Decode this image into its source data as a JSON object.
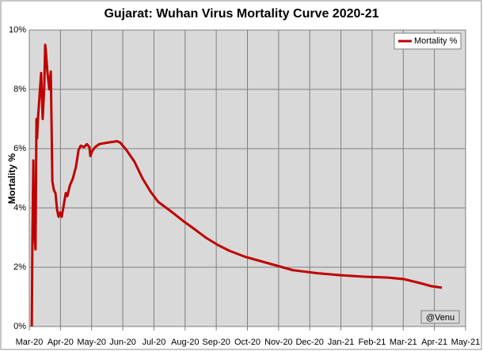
{
  "chart_data": {
    "type": "line",
    "title": "Gujarat: Wuhan Virus Mortality Curve 2020-21",
    "y_label": "Mortality %",
    "annotation": "@Venu",
    "legend": "upper right",
    "grid": true,
    "xlim": [
      0,
      14
    ],
    "xticks": [
      {
        "value": 0,
        "label": "Mar-20"
      },
      {
        "value": 1,
        "label": "Apr-20"
      },
      {
        "value": 2,
        "label": "May-20"
      },
      {
        "value": 3,
        "label": "Jun-20"
      },
      {
        "value": 4,
        "label": "Jul-20"
      },
      {
        "value": 5,
        "label": "Aug-20"
      },
      {
        "value": 6,
        "label": "Sep-20"
      },
      {
        "value": 7,
        "label": "Oct-20"
      },
      {
        "value": 8,
        "label": "Nov-20"
      },
      {
        "value": 9,
        "label": "Dec-20"
      },
      {
        "value": 10,
        "label": "Jan-21"
      },
      {
        "value": 11,
        "label": "Feb-21"
      },
      {
        "value": 12,
        "label": "Mar-21"
      },
      {
        "value": 13,
        "label": "Apr-21"
      },
      {
        "value": 14,
        "label": "May-21"
      }
    ],
    "ylim": [
      0,
      10
    ],
    "yticks": [
      {
        "value": 0,
        "label": "0%"
      },
      {
        "value": 2,
        "label": "2%"
      },
      {
        "value": 4,
        "label": "4%"
      },
      {
        "value": 6,
        "label": "6%"
      },
      {
        "value": 8,
        "label": "8%"
      },
      {
        "value": 10,
        "label": "10%"
      }
    ],
    "x": [
      0.08,
      0.1,
      0.13,
      0.15,
      0.2,
      0.23,
      0.25,
      0.28,
      0.33,
      0.38,
      0.43,
      0.48,
      0.51,
      0.53,
      0.58,
      0.64,
      0.69,
      0.74,
      0.79,
      0.84,
      0.89,
      0.94,
      0.99,
      1.04,
      1.09,
      1.17,
      1.22,
      1.3,
      1.4,
      1.5,
      1.58,
      1.65,
      1.75,
      1.85,
      1.93,
      1.96,
      2.01,
      2.11,
      2.24,
      2.49,
      2.82,
      2.92,
      3.12,
      3.38,
      3.63,
      3.89,
      4.14,
      4.4,
      4.65,
      4.95,
      5.28,
      5.66,
      6.05,
      6.43,
      6.93,
      7.44,
      7.95,
      8.46,
      9.22,
      9.98,
      10.74,
      11.51,
      12.01,
      12.52,
      12.9,
      13.24
    ],
    "series": [
      {
        "name": "Mortality %",
        "color": "#c00000",
        "values": [
          0,
          3.0,
          5.6,
          3.3,
          2.6,
          7.0,
          6.35,
          7.05,
          7.8,
          8.55,
          7.0,
          8.1,
          9.5,
          9.3,
          8.6,
          8.0,
          8.6,
          4.9,
          4.6,
          4.5,
          3.95,
          3.7,
          3.85,
          3.7,
          4.0,
          4.5,
          4.4,
          4.75,
          5.0,
          5.4,
          5.95,
          6.1,
          6.05,
          6.15,
          6.05,
          5.75,
          5.9,
          6.05,
          6.15,
          6.2,
          6.25,
          6.2,
          5.95,
          5.55,
          5.0,
          4.55,
          4.2,
          4.0,
          3.8,
          3.55,
          3.3,
          3.0,
          2.75,
          2.55,
          2.35,
          2.2,
          2.05,
          1.9,
          1.8,
          1.73,
          1.68,
          1.65,
          1.6,
          1.47,
          1.36,
          1.31
        ]
      }
    ]
  }
}
